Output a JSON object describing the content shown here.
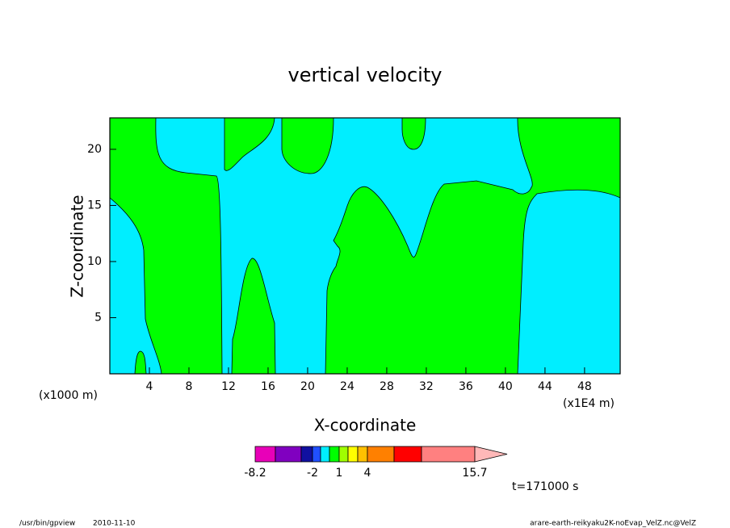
{
  "chart_data": {
    "type": "contour",
    "title": "vertical velocity",
    "x_label": "X-coordinate",
    "y_label": "Z-coordinate",
    "x_unit_left": "(x1000 m)",
    "x_unit_right": "(x1E4 m)",
    "time_label": "t=171000 s",
    "xlim": [
      0,
      51.6
    ],
    "ylim": [
      0,
      22.8
    ],
    "xticks": [
      4,
      8,
      12,
      16,
      20,
      24,
      28,
      32,
      36,
      40,
      44,
      48
    ],
    "yticks": [
      5,
      10,
      15,
      20
    ],
    "colorbar": {
      "colors": [
        "#e800b8",
        "#8000c0",
        "#1010a0",
        "#2050ff",
        "#00eeff",
        "#00ff00",
        "#a0ff00",
        "#ffff00",
        "#ffc000",
        "#ff8000",
        "#ff0000",
        "#ff8080",
        "#ffb8b8"
      ],
      "labels": [
        -8.2,
        -2,
        1,
        4,
        15.7
      ]
    }
  },
  "footer": {
    "program": "/usr/bin/gpview",
    "date": "2010-11-10",
    "source": "arare-earth-reikyaku2K-noEvap_VelZ.nc@VelZ"
  }
}
